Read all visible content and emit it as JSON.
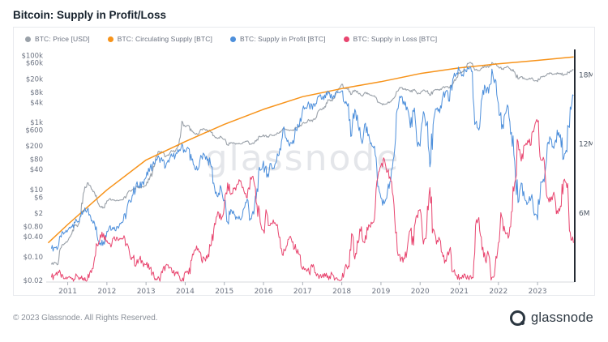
{
  "page": {
    "title": "Bitcoin: Supply in Profit/Loss",
    "footer_copyright": "© 2023 Glassnode. All Rights Reserved.",
    "brand": "glassnode",
    "watermark": "glassnode"
  },
  "legend": [
    {
      "label": "BTC: Price [USD]",
      "color": "#9aa1a9"
    },
    {
      "label": "BTC: Circulating Supply [BTC]",
      "color": "#f7931a"
    },
    {
      "label": "BTC: Supply in Profit [BTC]",
      "color": "#4d8fdb"
    },
    {
      "label": "BTC: Supply in Loss [BTC]",
      "color": "#e8456f"
    }
  ],
  "chart_data": {
    "type": "line",
    "title": "Bitcoin: Supply in Profit/Loss",
    "grid": false,
    "legend_position": "top-left",
    "x_axis": {
      "ticks": [
        2011,
        2012,
        2013,
        2014,
        2015,
        2016,
        2017,
        2018,
        2019,
        2020,
        2021,
        2022,
        2023
      ],
      "range": [
        2010.45,
        2023.95
      ]
    },
    "y_left": {
      "scale": "log",
      "unit": "USD",
      "range": [
        0.018,
        150000
      ],
      "tick_labels": [
        "$100k",
        "$60k",
        "$20k",
        "$8k",
        "$4k",
        "$1k",
        "$600",
        "$200",
        "$80",
        "$40",
        "$10",
        "$6",
        "$2",
        "$0.80",
        "$0.40",
        "$0.10",
        "$0.02"
      ],
      "tick_values": [
        100000,
        60000,
        20000,
        8000,
        4000,
        1000,
        600,
        200,
        80,
        40,
        10,
        6,
        2,
        0.8,
        0.4,
        0.1,
        0.02
      ]
    },
    "y_right": {
      "scale": "linear",
      "unit": "BTC (millions)",
      "range": [
        0,
        20.2
      ],
      "tick_labels": [
        "18M",
        "12M",
        "6M"
      ],
      "tick_values": [
        18,
        12,
        6
      ]
    },
    "series": [
      {
        "name": "BTC: Price [USD]",
        "axis": "left",
        "color": "#9aa1a9",
        "x_start": 2010.5833,
        "x_step": 0.0833333,
        "values": [
          0.06,
          0.07,
          0.06,
          0.19,
          0.25,
          0.3,
          0.45,
          0.9,
          0.8,
          1.8,
          8.7,
          16,
          13,
          9,
          5,
          3.2,
          3,
          4.7,
          5.5,
          4.9,
          4.9,
          5,
          5.1,
          6.6,
          9.4,
          10.2,
          12.4,
          11.2,
          12.5,
          13.5,
          20,
          33,
          93,
          139,
          128,
          97,
          106,
          141,
          141,
          204,
          1100,
          754,
          815,
          550,
          458,
          446,
          627,
          635,
          589,
          509,
          386,
          338,
          378,
          320,
          217,
          254,
          244,
          236,
          230,
          263,
          284,
          230,
          236,
          314,
          377,
          430,
          368,
          437,
          416,
          448,
          531,
          673,
          624,
          575,
          609,
          700,
          745,
          963,
          970,
          1180,
          1080,
          1350,
          2300,
          2480,
          2875,
          4700,
          4360,
          6440,
          10100,
          13850,
          10100,
          10300,
          6930,
          9240,
          7500,
          6400,
          7750,
          7020,
          6625,
          6300,
          4017,
          3690,
          3457,
          3855,
          4105,
          5320,
          8574,
          10817,
          10085,
          9630,
          8293,
          9199,
          7569,
          7194,
          9350,
          8543,
          6424,
          8658,
          9461,
          9138,
          11323,
          11680,
          10778,
          13781,
          19695,
          28990,
          33114,
          45137,
          58919,
          57750,
          37333,
          35041,
          41626,
          47166,
          43790,
          61318,
          57005,
          46306,
          38483,
          43193,
          45539,
          37714,
          31792,
          19985,
          23336,
          20050,
          19432,
          20495,
          17168,
          16547,
          23139,
          23147,
          28478,
          29268,
          27219,
          30477,
          29230,
          25931,
          26967,
          34500,
          37000
        ]
      },
      {
        "name": "BTC: Circulating Supply [BTC]",
        "axis": "right",
        "color": "#f7931a",
        "points": [
          [
            2010.5,
            3.4
          ],
          [
            2011,
            5.0
          ],
          [
            2012,
            8.0
          ],
          [
            2013,
            10.6
          ],
          [
            2014,
            12.2
          ],
          [
            2015,
            13.7
          ],
          [
            2016,
            15.0
          ],
          [
            2017,
            16.1
          ],
          [
            2018,
            16.8
          ],
          [
            2019,
            17.4
          ],
          [
            2020,
            18.1
          ],
          [
            2021,
            18.6
          ],
          [
            2022,
            18.95
          ],
          [
            2023,
            19.25
          ],
          [
            2023.92,
            19.55
          ]
        ]
      },
      {
        "name": "BTC: Supply in Profit [BTC]",
        "axis": "right",
        "color": "#4d8fdb",
        "x_start": 2010.5833,
        "x_step": 0.0833333,
        "values": [
          2.9,
          3,
          3,
          3.9,
          4.3,
          4.5,
          4.8,
          5.2,
          5.2,
          5.7,
          6.1,
          6.3,
          5.7,
          5.3,
          4,
          3.4,
          3.5,
          4.4,
          4.9,
          4.6,
          4.8,
          5.1,
          5.3,
          6,
          7.1,
          7.6,
          8.5,
          8.2,
          8.7,
          9.1,
          9.6,
          10.1,
          10.7,
          10.8,
          10.5,
          10,
          10.4,
          10.9,
          11,
          11.3,
          12,
          11.3,
          11.6,
          10.6,
          9.8,
          9.8,
          10.9,
          11,
          10.7,
          10,
          8.2,
          7.4,
          8.2,
          7.1,
          5.2,
          6.3,
          5.9,
          5.6,
          5.4,
          6.4,
          7.2,
          5.5,
          5.9,
          8.1,
          9.7,
          10.5,
          9.1,
          10.3,
          9.9,
          10.5,
          11.6,
          13.3,
          12.5,
          11.8,
          12.3,
          13.2,
          13.6,
          15,
          15.1,
          15.4,
          15,
          15.5,
          16.1,
          15.9,
          16,
          16.4,
          15.9,
          16.4,
          16.5,
          16.6,
          15.5,
          15.5,
          12.7,
          15,
          13.6,
          12.3,
          13.7,
          12.7,
          12.1,
          11.8,
          8.3,
          7.3,
          6.8,
          7.9,
          8.8,
          10.9,
          15,
          16,
          15.7,
          15.2,
          13.4,
          14.8,
          12.2,
          11.8,
          14.8,
          13.7,
          10,
          13.7,
          15,
          14.7,
          16.2,
          16.6,
          15.7,
          17.6,
          18,
          18.4,
          18,
          18.3,
          18.5,
          18.3,
          13.8,
          13.2,
          16,
          16.9,
          16.4,
          18.5,
          17.6,
          15.5,
          13.3,
          14.6,
          15.2,
          13,
          10.5,
          6.9,
          8.6,
          7.3,
          6.9,
          7.3,
          5.8,
          5.4,
          8.7,
          8.7,
          12,
          12.4,
          11.6,
          13.2,
          12.8,
          10.7,
          11.3,
          15.2,
          16.2
        ]
      },
      {
        "name": "BTC: Supply in Loss [BTC]",
        "axis": "right",
        "color": "#e8456f",
        "x_start": 2010.5833,
        "x_step": 0.0833333,
        "values": [
          0.4,
          0.6,
          0.9,
          0.4,
          0.3,
          0.4,
          0.4,
          0.25,
          0.5,
          0.3,
          0.12,
          0.18,
          1,
          1.7,
          3.2,
          4.1,
          4.2,
          3.6,
          3.3,
          3.8,
          3.9,
          3.8,
          3.8,
          3.3,
          2.4,
          2.1,
          1.5,
          2,
          1.7,
          1.5,
          1.1,
          0.8,
          0.3,
          0.3,
          0.8,
          1.4,
          1.2,
          0.8,
          0.8,
          0.6,
          0.1,
          0.9,
          0.7,
          1.9,
          2.8,
          2.9,
          1.9,
          2,
          2.4,
          3.2,
          5.1,
          6.1,
          5.4,
          6.6,
          8.6,
          7.6,
          8.1,
          8.5,
          8.8,
          7.9,
          7.3,
          9.1,
          8.8,
          6.7,
          5.2,
          4.5,
          6,
          4.9,
          5.4,
          4.9,
          3.9,
          2.3,
          3.1,
          3.9,
          3.5,
          2.7,
          2.4,
          1.1,
          1.1,
          0.8,
          1.3,
          0.8,
          0.3,
          0.5,
          0.5,
          0.2,
          0.7,
          0.3,
          0.2,
          0.2,
          1.3,
          1.4,
          4.2,
          2,
          3.4,
          4.8,
          3.4,
          4.5,
          5.2,
          5.5,
          9,
          10.1,
          10.7,
          9.6,
          8.8,
          6.7,
          2.7,
          1.8,
          2.1,
          2.7,
          4.5,
          3.2,
          5.8,
          6.3,
          3.3,
          4.5,
          8.2,
          4.6,
          3.3,
          3.7,
          2.2,
          1.8,
          2.8,
          0.9,
          0.6,
          0.2,
          0.6,
          0.4,
          0.2,
          0.4,
          4.9,
          5.6,
          2.8,
          1.9,
          2.4,
          0.4,
          1.3,
          3.4,
          5.7,
          4.4,
          3.8,
          6.1,
          8.6,
          12.2,
          10.5,
          11.9,
          12.3,
          11.9,
          13.4,
          13.9,
          10.6,
          10.6,
          7.3,
          7,
          7.8,
          6.2,
          6.6,
          8.8,
          8.2,
          4.3,
          3.4
        ]
      }
    ]
  }
}
